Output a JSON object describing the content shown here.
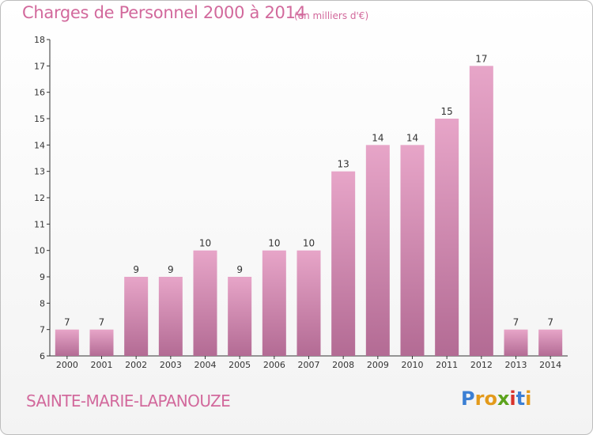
{
  "title": "Charges de Personnel 2000 à 2014",
  "unit_note": "(en milliers d'€)",
  "commune": "SAINTE-MARIE-LAPANOUZE",
  "logo": {
    "text": "Proxiti",
    "letters": [
      "P",
      "r",
      "o",
      "x",
      "i",
      "t",
      "i"
    ],
    "colors": [
      "#3b7fd4",
      "#e39a1b",
      "#e39a1b",
      "#5ca31c",
      "#d8322b",
      "#3b7fd4",
      "#e39a1b"
    ]
  },
  "colors": {
    "accent": "#d2699c",
    "bar_top": "#e7a5c8",
    "bar_bottom": "#b36b94"
  },
  "chart_data": {
    "type": "bar",
    "title": "Charges de Personnel 2000 à 2014",
    "subtitle": "(en milliers d'€)",
    "categories": [
      "2000",
      "2001",
      "2002",
      "2003",
      "2004",
      "2005",
      "2006",
      "2007",
      "2008",
      "2009",
      "2010",
      "2011",
      "2012",
      "2013",
      "2014"
    ],
    "values": [
      7,
      7,
      9,
      9,
      10,
      9,
      10,
      10,
      13,
      14,
      14,
      15,
      17,
      7,
      7
    ],
    "ylim": [
      6,
      18
    ],
    "yticks": [
      6,
      7,
      8,
      9,
      10,
      11,
      12,
      13,
      14,
      15,
      16,
      17,
      18
    ],
    "grid": false,
    "xlabel": "",
    "ylabel": ""
  }
}
